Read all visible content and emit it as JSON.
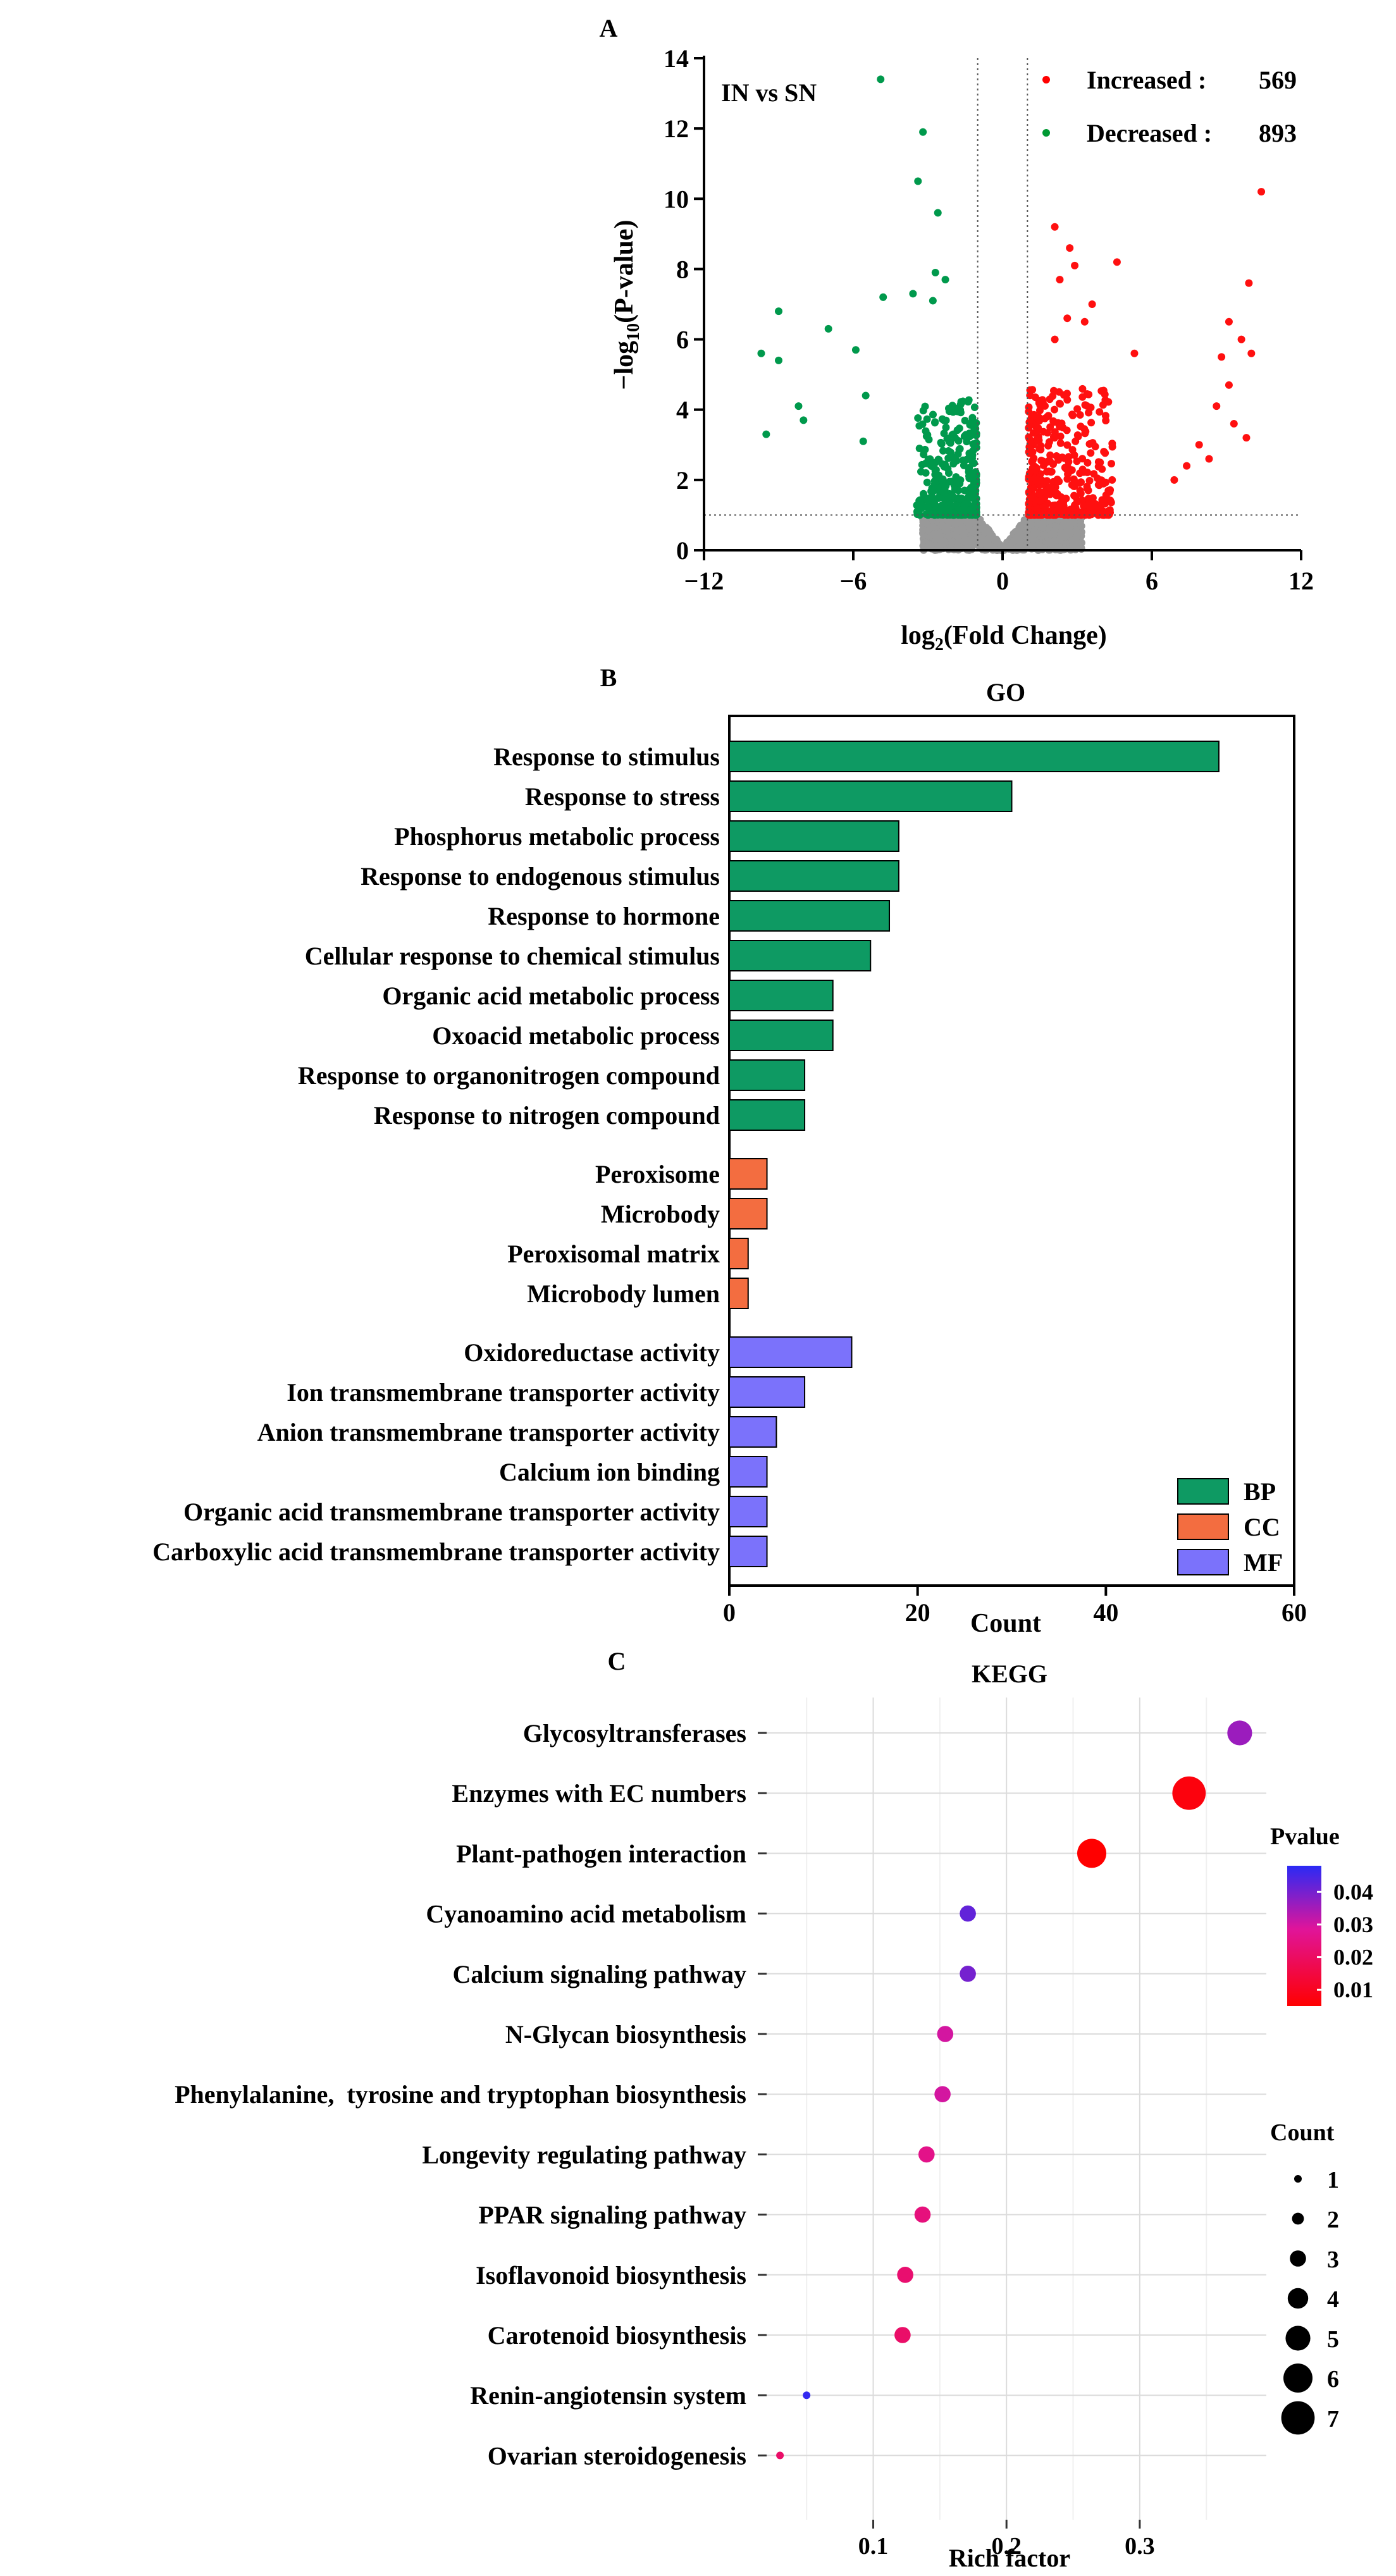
{
  "chart_data": [
    {
      "panel": "A",
      "type": "scatter",
      "annotation": "IN vs SN",
      "xlabel": "log2(Fold Change)",
      "ylabel": "-log10(P-value)",
      "xlim": [
        -12,
        12
      ],
      "ylim": [
        0,
        14
      ],
      "xticks": [
        -12,
        -6,
        0,
        6,
        12
      ],
      "yticks": [
        0,
        2,
        4,
        6,
        8,
        10,
        12,
        14
      ],
      "thresholds": {
        "x": [
          -1,
          1
        ],
        "y": 1
      },
      "legend": [
        {
          "label": "Increased :",
          "count": "569",
          "color": "#ff0000"
        },
        {
          "label": "Decreased :",
          "count": "893",
          "color": "#009933"
        }
      ],
      "colors": {
        "up": "#ff1010",
        "down": "#00994c",
        "ns": "#999999"
      },
      "highlight_points": {
        "down": [
          [
            -4.9,
            13.4
          ],
          [
            -3.2,
            11.9
          ],
          [
            -3.4,
            10.5
          ],
          [
            -2.6,
            9.6
          ],
          [
            -2.7,
            7.9
          ],
          [
            -2.3,
            7.7
          ],
          [
            -3.6,
            7.3
          ],
          [
            -2.8,
            7.1
          ],
          [
            -4.8,
            7.2
          ],
          [
            -9.0,
            6.8
          ],
          [
            -7.0,
            6.3
          ],
          [
            -9.7,
            5.6
          ],
          [
            -9.0,
            5.4
          ],
          [
            -5.9,
            5.7
          ],
          [
            -8.2,
            4.1
          ],
          [
            -8.0,
            3.7
          ],
          [
            -9.5,
            3.3
          ],
          [
            -5.5,
            4.4
          ],
          [
            -5.6,
            3.1
          ]
        ],
        "up": [
          [
            10.4,
            10.2
          ],
          [
            2.1,
            9.2
          ],
          [
            2.7,
            8.6
          ],
          [
            2.9,
            8.1
          ],
          [
            4.6,
            8.2
          ],
          [
            9.9,
            7.6
          ],
          [
            2.3,
            7.7
          ],
          [
            3.6,
            7.0
          ],
          [
            3.3,
            6.5
          ],
          [
            2.6,
            6.6
          ],
          [
            9.1,
            6.5
          ],
          [
            9.6,
            6.0
          ],
          [
            10.0,
            5.6
          ],
          [
            8.8,
            5.5
          ],
          [
            5.3,
            5.6
          ],
          [
            2.1,
            6.0
          ],
          [
            9.1,
            4.7
          ],
          [
            8.6,
            4.1
          ],
          [
            9.3,
            3.6
          ],
          [
            9.8,
            3.2
          ],
          [
            7.9,
            3.0
          ],
          [
            8.3,
            2.6
          ],
          [
            7.4,
            2.4
          ],
          [
            6.9,
            2.0
          ]
        ]
      }
    },
    {
      "panel": "B",
      "type": "bar",
      "title": "GO",
      "xlabel": "Count",
      "xlim": [
        0,
        60
      ],
      "xticks": [
        0,
        20,
        40,
        60
      ],
      "legend": [
        {
          "name": "BP",
          "color": "#0e9a63"
        },
        {
          "name": "CC",
          "color": "#f36d40"
        },
        {
          "name": "MF",
          "color": "#7b72fb"
        }
      ],
      "groups": [
        {
          "name": "BP",
          "items": [
            {
              "label": "Response to stimulus",
              "value": 52
            },
            {
              "label": "Response to stress",
              "value": 30
            },
            {
              "label": "Phosphorus metabolic process",
              "value": 18
            },
            {
              "label": "Response to endogenous stimulus",
              "value": 18
            },
            {
              "label": "Response to hormone",
              "value": 17
            },
            {
              "label": "Cellular response to chemical stimulus",
              "value": 15
            },
            {
              "label": "Organic acid metabolic process",
              "value": 11
            },
            {
              "label": "Oxoacid metabolic process",
              "value": 11
            },
            {
              "label": "Response to organonitrogen compound",
              "value": 8
            },
            {
              "label": "Response to nitrogen compound",
              "value": 8
            }
          ]
        },
        {
          "name": "CC",
          "items": [
            {
              "label": "Peroxisome",
              "value": 4
            },
            {
              "label": "Microbody",
              "value": 4
            },
            {
              "label": "Peroxisomal matrix",
              "value": 2
            },
            {
              "label": "Microbody lumen",
              "value": 2
            }
          ]
        },
        {
          "name": "MF",
          "items": [
            {
              "label": "Oxidoreductase activity",
              "value": 13
            },
            {
              "label": "Ion transmembrane transporter activity",
              "value": 8
            },
            {
              "label": "Anion transmembrane transporter activity",
              "value": 5
            },
            {
              "label": "Calcium ion binding",
              "value": 4
            },
            {
              "label": "Organic acid transmembrane transporter activity",
              "value": 4
            },
            {
              "label": "Carboxylic acid transmembrane transporter activity",
              "value": 4
            }
          ]
        }
      ]
    },
    {
      "panel": "C",
      "type": "scatter",
      "title": "KEGG",
      "xlabel": "Rich factor",
      "xlim": [
        0.02,
        0.395
      ],
      "xticks": [
        0.1,
        0.2,
        0.3
      ],
      "pvalue_legend": {
        "title": "Pvalue",
        "ticks": [
          0.04,
          0.03,
          0.02,
          0.01
        ],
        "range": [
          0.005,
          0.048
        ],
        "low_color": "#ff0000",
        "high_color": "#2a2af5"
      },
      "count_legend": {
        "title": "Count",
        "values": [
          1,
          2,
          3,
          4,
          5,
          6,
          7
        ]
      },
      "points": [
        {
          "term": "Glycosyltransferases",
          "rich_factor": 0.375,
          "count": 5,
          "pvalue": 0.036
        },
        {
          "term": "Enzymes with EC numbers",
          "rich_factor": 0.337,
          "count": 7,
          "pvalue": 0.007
        },
        {
          "term": "Plant-pathogen interaction",
          "rich_factor": 0.264,
          "count": 6,
          "pvalue": 0.005
        },
        {
          "term": "Cyanoamino acid metabolism",
          "rich_factor": 0.171,
          "count": 3,
          "pvalue": 0.042
        },
        {
          "term": "Calcium signaling pathway",
          "rich_factor": 0.171,
          "count": 3,
          "pvalue": 0.04
        },
        {
          "term": "N-Glycan biosynthesis",
          "rich_factor": 0.154,
          "count": 3,
          "pvalue": 0.03
        },
        {
          "term": "Phenylalanine,  tyrosine and tryptophan biosynthesis",
          "rich_factor": 0.152,
          "count": 3,
          "pvalue": 0.03
        },
        {
          "term": "Longevity regulating pathway",
          "rich_factor": 0.14,
          "count": 3,
          "pvalue": 0.026
        },
        {
          "term": "PPAR signaling pathway",
          "rich_factor": 0.137,
          "count": 3,
          "pvalue": 0.024
        },
        {
          "term": "Isoflavonoid biosynthesis",
          "rich_factor": 0.124,
          "count": 3,
          "pvalue": 0.022
        },
        {
          "term": "Carotenoid biosynthesis",
          "rich_factor": 0.122,
          "count": 3,
          "pvalue": 0.021
        },
        {
          "term": "Renin-angiotensin system",
          "rich_factor": 0.05,
          "count": 1,
          "pvalue": 0.047
        },
        {
          "term": "Ovarian steroidogenesis",
          "rich_factor": 0.03,
          "count": 1,
          "pvalue": 0.021
        }
      ]
    }
  ]
}
